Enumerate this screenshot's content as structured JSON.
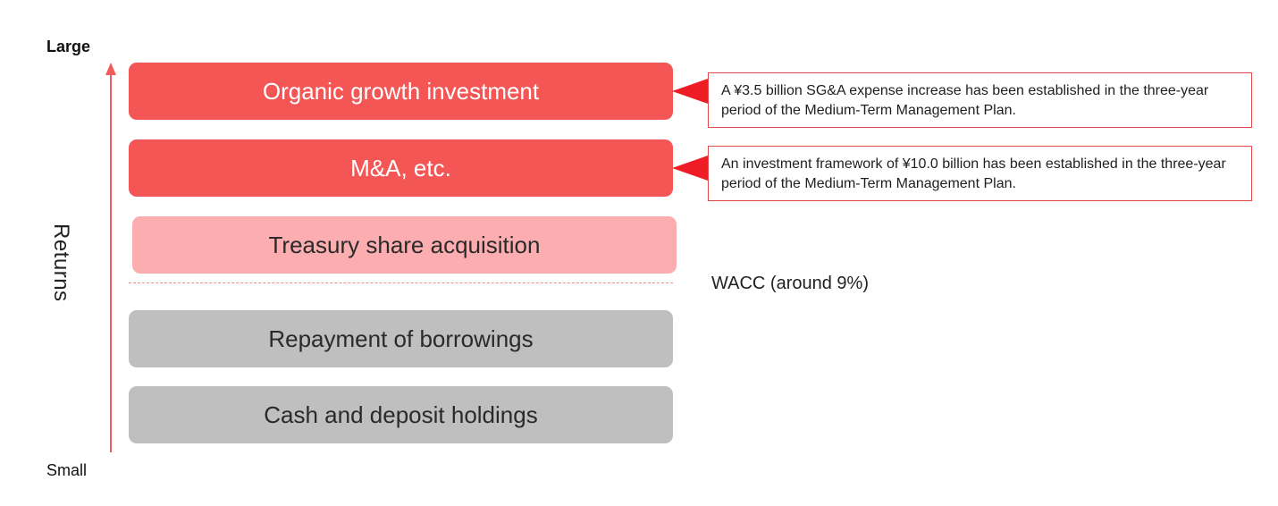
{
  "axis": {
    "top_label": "Large",
    "bottom_label": "Small",
    "title": "Returns",
    "color": "#f25b5b"
  },
  "tiers": [
    {
      "label": "Organic growth investment",
      "color": "#f45555"
    },
    {
      "label": "M&A, etc.",
      "color": "#f45555"
    },
    {
      "label": "Treasury share acquisition",
      "color": "#fcadb0"
    },
    {
      "label": "Repayment of borrowings",
      "color": "#bfbfbf"
    },
    {
      "label": "Cash and deposit holdings",
      "color": "#bfbfbf"
    }
  ],
  "callouts": [
    {
      "text": "A ¥3.5 billion SG&A expense increase has been established in the three-year period of the Medium-Term Management Plan."
    },
    {
      "text": "An investment framework of ¥10.0 billion has been established in the three-year period of the Medium-Term Management Plan."
    }
  ],
  "threshold": {
    "label": "WACC (around 9%)"
  },
  "colors": {
    "callout_border": "#e24a4a",
    "pointer": "#ee1c25"
  }
}
